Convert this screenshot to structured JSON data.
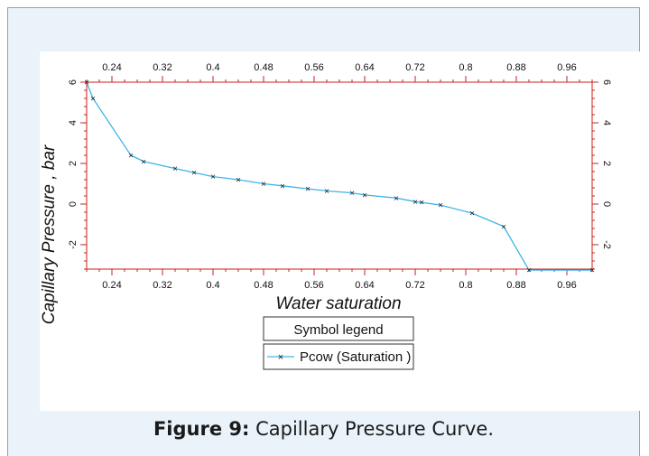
{
  "caption": {
    "label": "Figure 9:",
    "text": " Capillary Pressure Curve."
  },
  "colors": {
    "axis": "#cc1f1f",
    "series": "#3fb3e8",
    "marker": "#1a1a1a",
    "background": "#e9f3f9"
  },
  "chart_data": {
    "type": "line",
    "title": "",
    "xlabel": "Water saturation",
    "ylabel": "Capillary Pressure , bar",
    "xlim": [
      0.2,
      1.0
    ],
    "ylim": [
      -3.2,
      6.0
    ],
    "x_ticks": [
      "0.24",
      "0.32",
      "0.4",
      "0.48",
      "0.56",
      "0.64",
      "0.72",
      "0.8",
      "0.88",
      "0.96"
    ],
    "y_ticks": [
      "-2",
      "0",
      "2",
      "4",
      "6"
    ],
    "grid": false,
    "legend": {
      "title": "Symbol legend",
      "placement": "bottom-center"
    },
    "series": [
      {
        "name": "Pcow (Saturation )",
        "x": [
          0.2,
          0.21,
          0.27,
          0.29,
          0.34,
          0.37,
          0.4,
          0.44,
          0.48,
          0.51,
          0.55,
          0.58,
          0.62,
          0.64,
          0.69,
          0.72,
          0.73,
          0.76,
          0.81,
          0.86,
          0.9,
          1.0
        ],
        "y": [
          6.0,
          5.2,
          2.4,
          2.1,
          1.75,
          1.55,
          1.35,
          1.2,
          1.0,
          0.9,
          0.75,
          0.65,
          0.55,
          0.45,
          0.3,
          0.12,
          0.08,
          -0.05,
          -0.45,
          -1.1,
          -3.25,
          -3.25
        ]
      }
    ]
  }
}
